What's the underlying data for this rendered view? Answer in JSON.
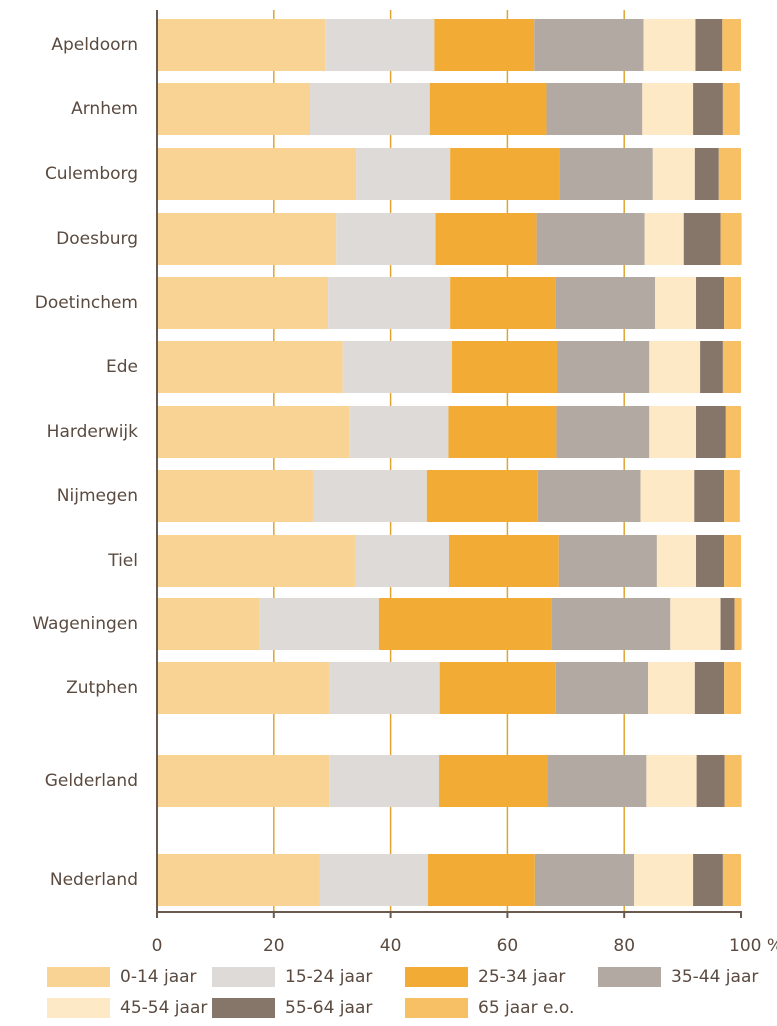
{
  "chart_data": {
    "type": "stacked_barh",
    "categories": [
      "Apeldoorn",
      "Arnhem",
      "Culemborg",
      "Doesburg",
      "Doetinchem",
      "Ede",
      "Harderwijk",
      "Nijmegen",
      "Tiel",
      "Wageningen",
      "Zutphen",
      "Gelderland",
      "Nederland"
    ],
    "series": [
      {
        "name": "0-14 jaar",
        "color": "#f9d393",
        "values": [
          28.8,
          26.2,
          34.1,
          30.7,
          29.3,
          31.8,
          32.9,
          26.7,
          33.9,
          17.6,
          29.6,
          29.5,
          27.9
        ]
      },
      {
        "name": "15-24 jaar",
        "color": "#dedad8",
        "values": [
          18.7,
          20.5,
          16.1,
          17.0,
          20.9,
          18.7,
          17.0,
          19.5,
          16.1,
          20.4,
          18.8,
          18.8,
          18.5
        ]
      },
      {
        "name": "25-34 jaar",
        "color": "#f2ab35",
        "values": [
          17.1,
          20.0,
          18.8,
          17.3,
          18.0,
          18.0,
          18.5,
          19.0,
          18.8,
          29.5,
          19.9,
          18.5,
          18.3
        ]
      },
      {
        "name": "35-44 jaar",
        "color": "#b3a9a3",
        "values": [
          18.7,
          16.4,
          15.9,
          18.5,
          17.1,
          15.8,
          15.9,
          17.6,
          16.8,
          20.4,
          15.8,
          17.0,
          17.0
        ]
      },
      {
        "name": "45-54 jaar",
        "color": "#fde9c5",
        "values": [
          8.9,
          8.7,
          7.2,
          6.7,
          7.0,
          8.7,
          8.0,
          9.2,
          6.7,
          8.6,
          8.0,
          8.6,
          10.1
        ]
      },
      {
        "name": "55-64 jaar",
        "color": "#867569",
        "values": [
          4.6,
          5.1,
          4.1,
          6.3,
          4.8,
          3.9,
          5.1,
          5.1,
          4.8,
          2.4,
          5.0,
          4.8,
          5.1
        ]
      },
      {
        "name": "65 jaar e.o.",
        "color": "#f7c065",
        "values": [
          3.2,
          2.9,
          3.8,
          3.6,
          2.9,
          3.1,
          2.6,
          2.7,
          2.9,
          1.2,
          2.9,
          2.9,
          3.1
        ]
      }
    ],
    "xlim": [
      0,
      100
    ],
    "xticks": [
      0,
      20,
      40,
      60,
      80,
      {
        "value": 100,
        "label": "100 %"
      }
    ],
    "grid": true,
    "grid_color": "#e0a530"
  }
}
